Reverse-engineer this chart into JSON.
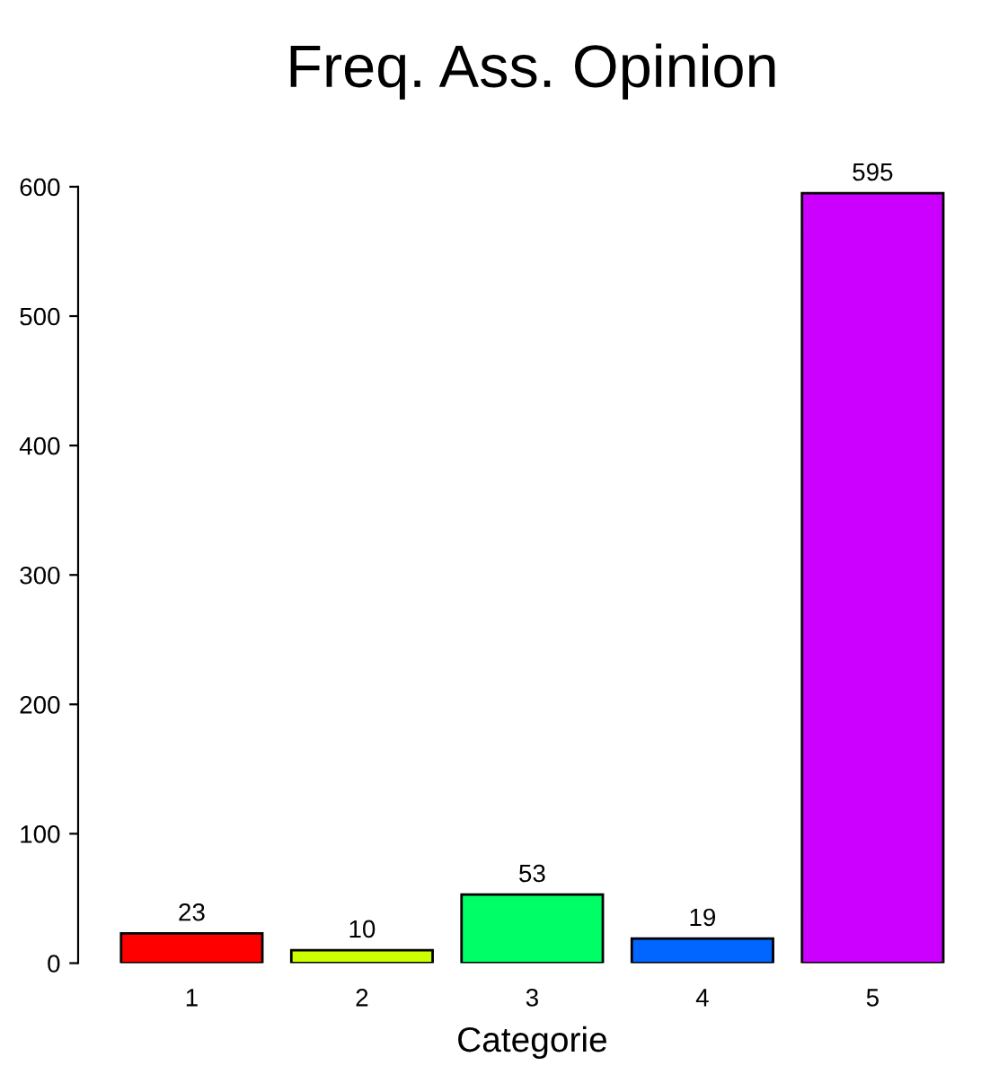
{
  "chart_data": {
    "type": "bar",
    "title": "Freq. Ass. Opinion",
    "xlabel": "Categorie",
    "categories": [
      "1",
      "2",
      "3",
      "4",
      "5"
    ],
    "values": [
      23,
      10,
      53,
      19,
      595
    ],
    "colors": [
      "#ff0000",
      "#ccff00",
      "#00ff66",
      "#0066ff",
      "#cc00ff"
    ],
    "ylim": [
      0,
      600
    ],
    "yticks": [
      0,
      100,
      200,
      300,
      400,
      500,
      600
    ],
    "data_labels": true,
    "grid": false,
    "legend": false
  }
}
